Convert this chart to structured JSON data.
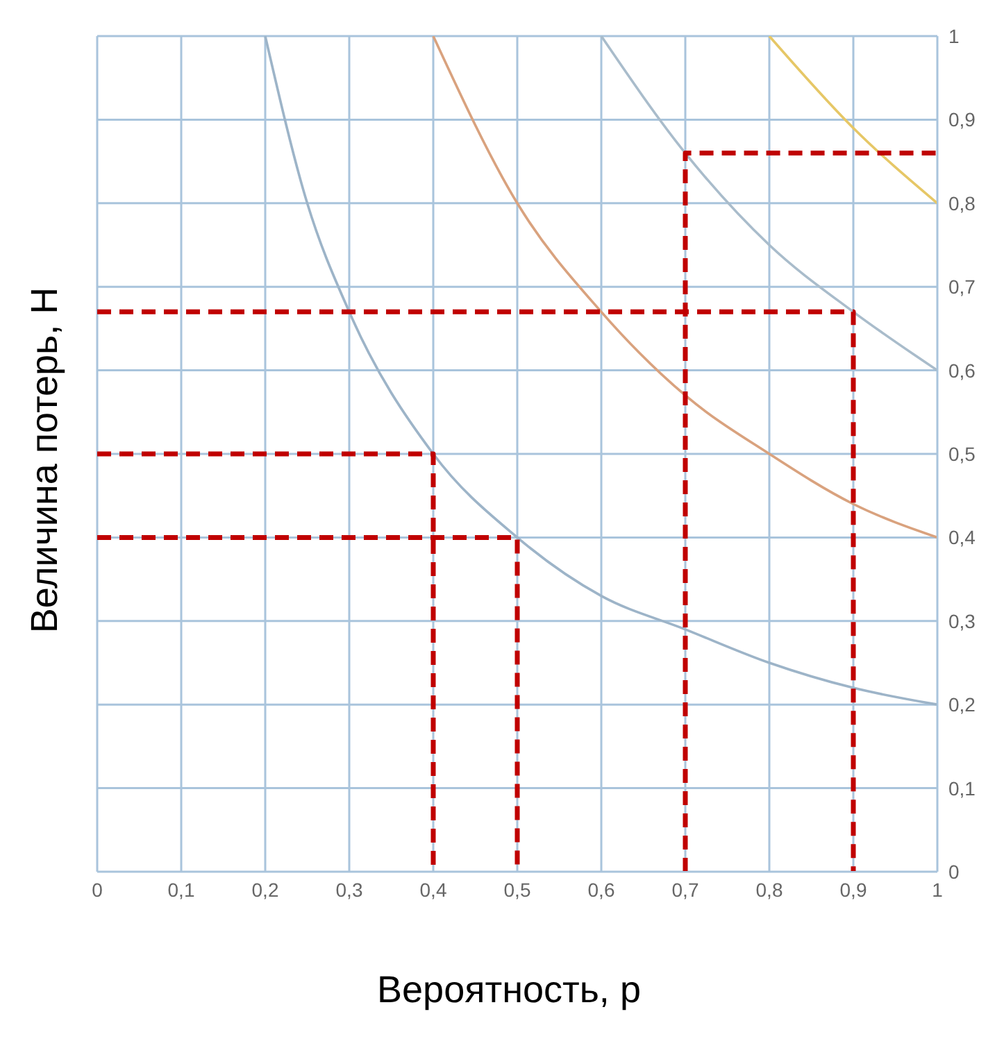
{
  "chart_data": {
    "type": "line",
    "xlabel": "Вероятность, р",
    "ylabel": "Величина потерь, Н",
    "xlim": [
      0,
      1
    ],
    "ylim": [
      0,
      1
    ],
    "xticks": [
      0,
      {
        "value": 0.1,
        "label": "0,1"
      },
      {
        "value": 0.2,
        "label": "0,2"
      },
      {
        "value": 0.3,
        "label": "0,3"
      },
      {
        "value": 0.4,
        "label": "0,4"
      },
      {
        "value": 0.5,
        "label": "0,5"
      },
      {
        "value": 0.6,
        "label": "0,6"
      },
      {
        "value": 0.7,
        "label": "0,7"
      },
      {
        "value": 0.8,
        "label": "0,8"
      },
      {
        "value": 0.9,
        "label": "0,9"
      },
      1
    ],
    "yticks": [
      0,
      {
        "value": 0.1,
        "label": "0,1"
      },
      {
        "value": 0.2,
        "label": "0,2"
      },
      {
        "value": 0.3,
        "label": "0,3"
      },
      {
        "value": 0.4,
        "label": "0,4"
      },
      {
        "value": 0.5,
        "label": "0,5"
      },
      {
        "value": 0.6,
        "label": "0,6"
      },
      {
        "value": 0.7,
        "label": "0,7"
      },
      {
        "value": 0.8,
        "label": "0,8"
      },
      {
        "value": 0.9,
        "label": "0,9"
      },
      1
    ],
    "grid": true,
    "marker": "none",
    "series": [
      {
        "color": "#9db4c8",
        "line_style": "solid",
        "x": [
          0.2,
          0.25,
          0.3,
          0.4,
          0.5,
          0.6,
          0.7,
          0.8,
          0.9,
          1
        ],
        "values": [
          1,
          0.8,
          0.67,
          0.5,
          0.4,
          0.33,
          0.29,
          0.25,
          0.22,
          0.2
        ]
      },
      {
        "color": "#d9a27e",
        "line_style": "solid",
        "x": [
          0.4,
          0.5,
          0.6,
          0.7,
          0.8,
          0.9,
          1
        ],
        "values": [
          1,
          0.8,
          0.67,
          0.57,
          0.5,
          0.44,
          0.4
        ]
      },
      {
        "color": "#a9bccb",
        "line_style": "solid",
        "x": [
          0.6,
          0.7,
          0.8,
          0.9,
          1
        ],
        "values": [
          1,
          0.86,
          0.75,
          0.67,
          0.6
        ]
      },
      {
        "color": "#e6c766",
        "line_style": "solid",
        "x": [
          0.8,
          0.9,
          1
        ],
        "values": [
          1,
          0.89,
          0.8
        ]
      },
      {
        "color": "#c00000",
        "line_style": "dashed",
        "x": [
          0,
          0.4,
          0.4
        ],
        "values": [
          0.5,
          0.5,
          0
        ]
      },
      {
        "color": "#c00000",
        "line_style": "dashed",
        "x": [
          0,
          0.5,
          0.5
        ],
        "values": [
          0.4,
          0.4,
          0
        ]
      },
      {
        "color": "#c00000",
        "line_style": "dashed",
        "x": [
          0,
          0.9,
          0.9
        ],
        "values": [
          0.67,
          0.67,
          0
        ]
      },
      {
        "color": "#c00000",
        "line_style": "dashed",
        "x": [
          0.7,
          0.7,
          1
        ],
        "values": [
          0,
          0.86,
          0.86
        ]
      }
    ]
  }
}
